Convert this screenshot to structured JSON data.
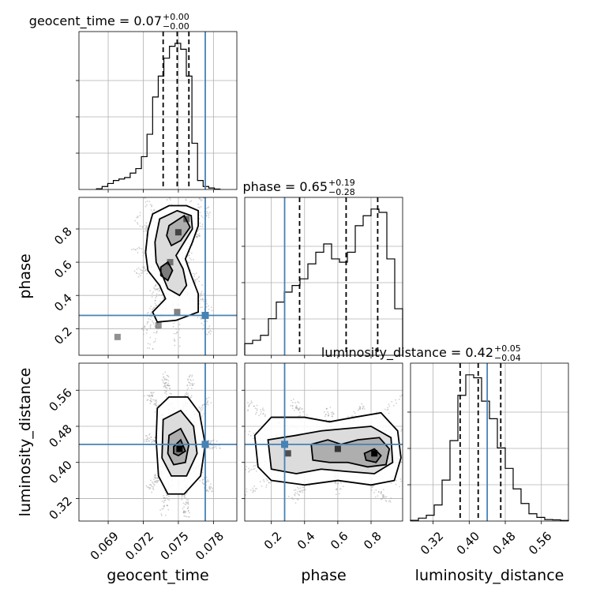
{
  "chart_data": {
    "type": "corner",
    "parameters": [
      "geocent_time",
      "phase",
      "luminosity_distance"
    ],
    "truths": {
      "geocent_time": 0.0773,
      "phase": 0.28,
      "luminosity_distance": 0.44
    },
    "truth_color": "#4682b4",
    "grid": true,
    "ranges": {
      "geocent_time": [
        0.0665,
        0.08
      ],
      "phase": [
        0.04,
        0.99
      ],
      "luminosity_distance": [
        0.27,
        0.62
      ]
    },
    "ticks": {
      "geocent_time": [
        "0.069",
        "0.072",
        "0.075",
        "0.078"
      ],
      "phase": [
        "0.2",
        "0.4",
        "0.6",
        "0.8"
      ],
      "luminosity_distance": [
        "0.32",
        "0.40",
        "0.48",
        "0.56"
      ]
    },
    "titles": {
      "geocent_time": {
        "label": "geocent_time",
        "median": "0.07",
        "plus": "+0.00",
        "minus": "−0.00"
      },
      "phase": {
        "label": "phase",
        "median": "0.65",
        "plus": "+0.19",
        "minus": "−0.28"
      },
      "luminosity_distance": {
        "label": "luminosity_distance",
        "median": "0.42",
        "plus": "+0.05",
        "minus": "−0.04"
      }
    },
    "quantiles": {
      "geocent_time": [
        0.0737,
        0.0749,
        0.0759
      ],
      "phase": [
        0.37,
        0.65,
        0.84
      ],
      "luminosity_distance": [
        0.38,
        0.42,
        0.47
      ]
    },
    "histograms": {
      "geocent_time": {
        "edges": [
          0.068,
          0.06848,
          0.06896,
          0.06944,
          0.06992,
          0.0704,
          0.07088,
          0.07136,
          0.07184,
          0.07232,
          0.0728,
          0.07328,
          0.07376,
          0.07424,
          0.07472,
          0.0752,
          0.07568,
          0.07616,
          0.07664,
          0.07712,
          0.0776,
          0.07808,
          0.07856
        ],
        "counts": [
          0.005,
          0.02,
          0.04,
          0.06,
          0.07,
          0.08,
          0.11,
          0.14,
          0.22,
          0.37,
          0.62,
          0.76,
          0.88,
          0.96,
          0.98,
          0.94,
          0.76,
          0.31,
          0.06,
          0.02,
          0.01,
          0.003
        ]
      },
      "phase": {
        "edges": [
          0.04,
          0.0875,
          0.135,
          0.1825,
          0.23,
          0.2775,
          0.325,
          0.3725,
          0.42,
          0.4675,
          0.515,
          0.5625,
          0.61,
          0.6575,
          0.705,
          0.7525,
          0.8,
          0.8475,
          0.895,
          0.9425,
          0.99
        ],
        "counts": [
          0.07,
          0.09,
          0.12,
          0.22,
          0.32,
          0.38,
          0.42,
          0.46,
          0.55,
          0.62,
          0.67,
          0.58,
          0.56,
          0.62,
          0.78,
          0.84,
          0.88,
          0.86,
          0.58,
          0.28
        ]
      },
      "luminosity_distance": {
        "edges": [
          0.27,
          0.2875,
          0.305,
          0.3225,
          0.34,
          0.3575,
          0.375,
          0.3925,
          0.41,
          0.4275,
          0.445,
          0.4625,
          0.48,
          0.4975,
          0.515,
          0.5325,
          0.55,
          0.5675,
          0.585,
          0.6025,
          0.62
        ],
        "counts": [
          0.005,
          0.02,
          0.04,
          0.11,
          0.28,
          0.55,
          0.86,
          1.0,
          0.98,
          0.82,
          0.7,
          0.5,
          0.36,
          0.22,
          0.12,
          0.05,
          0.025,
          0.01,
          0.008,
          0.004
        ]
      }
    },
    "contours_2d": {
      "phase_vs_geocent_time": [
        [
          [
            0.0728,
            0.89
          ],
          [
            0.0742,
            0.94
          ],
          [
            0.0757,
            0.94
          ],
          [
            0.0767,
            0.91
          ],
          [
            0.0767,
            0.82
          ],
          [
            0.0762,
            0.72
          ],
          [
            0.0756,
            0.62
          ],
          [
            0.0761,
            0.52
          ],
          [
            0.0767,
            0.41
          ],
          [
            0.0767,
            0.3
          ],
          [
            0.0748,
            0.25
          ],
          [
            0.0732,
            0.24
          ],
          [
            0.0728,
            0.3
          ],
          [
            0.0739,
            0.38
          ],
          [
            0.0734,
            0.46
          ],
          [
            0.0724,
            0.55
          ],
          [
            0.0722,
            0.66
          ],
          [
            0.0724,
            0.79
          ]
        ],
        [
          [
            0.0734,
            0.86
          ],
          [
            0.0749,
            0.91
          ],
          [
            0.0761,
            0.88
          ],
          [
            0.0762,
            0.8
          ],
          [
            0.0755,
            0.72
          ],
          [
            0.0748,
            0.64
          ],
          [
            0.0754,
            0.56
          ],
          [
            0.0757,
            0.46
          ],
          [
            0.0751,
            0.4
          ],
          [
            0.0741,
            0.44
          ],
          [
            0.0737,
            0.51
          ],
          [
            0.0731,
            0.6
          ],
          [
            0.073,
            0.72
          ]
        ],
        [
          [
            0.0742,
            0.82
          ],
          [
            0.0755,
            0.88
          ],
          [
            0.076,
            0.81
          ],
          [
            0.0752,
            0.73
          ],
          [
            0.0744,
            0.7
          ],
          [
            0.074,
            0.76
          ]
        ],
        [
          [
            0.0735,
            0.57
          ],
          [
            0.0741,
            0.6
          ],
          [
            0.0745,
            0.55
          ],
          [
            0.0741,
            0.49
          ],
          [
            0.0735,
            0.52
          ]
        ]
      ],
      "luminosity_distance_vs_geocent_time": [
        [
          [
            0.0732,
            0.52
          ],
          [
            0.0742,
            0.545
          ],
          [
            0.0758,
            0.545
          ],
          [
            0.0768,
            0.51
          ],
          [
            0.0773,
            0.44
          ],
          [
            0.0769,
            0.37
          ],
          [
            0.0755,
            0.33
          ],
          [
            0.0741,
            0.33
          ],
          [
            0.0733,
            0.37
          ],
          [
            0.0731,
            0.45
          ]
        ],
        [
          [
            0.0737,
            0.495
          ],
          [
            0.0752,
            0.515
          ],
          [
            0.0763,
            0.48
          ],
          [
            0.0766,
            0.42
          ],
          [
            0.0757,
            0.37
          ],
          [
            0.0744,
            0.37
          ],
          [
            0.0736,
            0.41
          ]
        ],
        [
          [
            0.0742,
            0.46
          ],
          [
            0.0752,
            0.475
          ],
          [
            0.0759,
            0.44
          ],
          [
            0.0756,
            0.4
          ],
          [
            0.0746,
            0.395
          ],
          [
            0.0741,
            0.42
          ]
        ],
        [
          [
            0.0746,
            0.435
          ],
          [
            0.0752,
            0.45
          ],
          [
            0.0756,
            0.425
          ],
          [
            0.075,
            0.415
          ],
          [
            0.0746,
            0.42
          ]
        ]
      ],
      "luminosity_distance_vs_phase": [
        [
          [
            0.1,
            0.46
          ],
          [
            0.2,
            0.5
          ],
          [
            0.4,
            0.5
          ],
          [
            0.55,
            0.49
          ],
          [
            0.7,
            0.5
          ],
          [
            0.86,
            0.51
          ],
          [
            0.96,
            0.47
          ],
          [
            0.98,
            0.41
          ],
          [
            0.94,
            0.36
          ],
          [
            0.8,
            0.35
          ],
          [
            0.6,
            0.36
          ],
          [
            0.4,
            0.35
          ],
          [
            0.2,
            0.36
          ],
          [
            0.12,
            0.39
          ]
        ],
        [
          [
            0.18,
            0.45
          ],
          [
            0.35,
            0.46
          ],
          [
            0.5,
            0.47
          ],
          [
            0.65,
            0.475
          ],
          [
            0.8,
            0.48
          ],
          [
            0.92,
            0.455
          ],
          [
            0.93,
            0.4
          ],
          [
            0.82,
            0.375
          ],
          [
            0.65,
            0.38
          ],
          [
            0.5,
            0.385
          ],
          [
            0.35,
            0.375
          ],
          [
            0.2,
            0.385
          ]
        ],
        [
          [
            0.44,
            0.44
          ],
          [
            0.54,
            0.45
          ],
          [
            0.62,
            0.44
          ],
          [
            0.72,
            0.45
          ],
          [
            0.85,
            0.455
          ],
          [
            0.91,
            0.43
          ],
          [
            0.89,
            0.395
          ],
          [
            0.78,
            0.39
          ],
          [
            0.66,
            0.4
          ],
          [
            0.55,
            0.4
          ],
          [
            0.45,
            0.405
          ]
        ],
        [
          [
            0.76,
            0.42
          ],
          [
            0.82,
            0.43
          ],
          [
            0.86,
            0.415
          ],
          [
            0.83,
            0.4
          ],
          [
            0.77,
            0.405
          ]
        ]
      ]
    },
    "density_peaks": {
      "phase_vs_geocent_time": [
        [
          0.0757,
          0.86,
          0.2
        ],
        [
          0.075,
          0.78,
          0.35
        ],
        [
          0.0743,
          0.6,
          0.15
        ],
        [
          0.0749,
          0.3,
          0.15
        ],
        [
          0.0733,
          0.22,
          0.05
        ],
        [
          0.0698,
          0.15,
          0.05
        ]
      ],
      "luminosity_distance_vs_geocent_time": [
        [
          0.0751,
          0.43,
          1
        ]
      ],
      "luminosity_distance_vs_phase": [
        [
          0.82,
          0.42,
          1
        ],
        [
          0.6,
          0.43,
          0.5
        ],
        [
          0.3,
          0.42,
          0.4
        ]
      ]
    },
    "scatter_extent": {
      "phase_vs_geocent_time": [
        0.068,
        0.0785,
        0.04,
        0.99
      ],
      "luminosity_distance_vs_geocent_time": [
        0.068,
        0.0785,
        0.28,
        0.6
      ],
      "luminosity_distance_vs_phase": [
        0.04,
        0.99,
        0.28,
        0.6
      ]
    }
  }
}
